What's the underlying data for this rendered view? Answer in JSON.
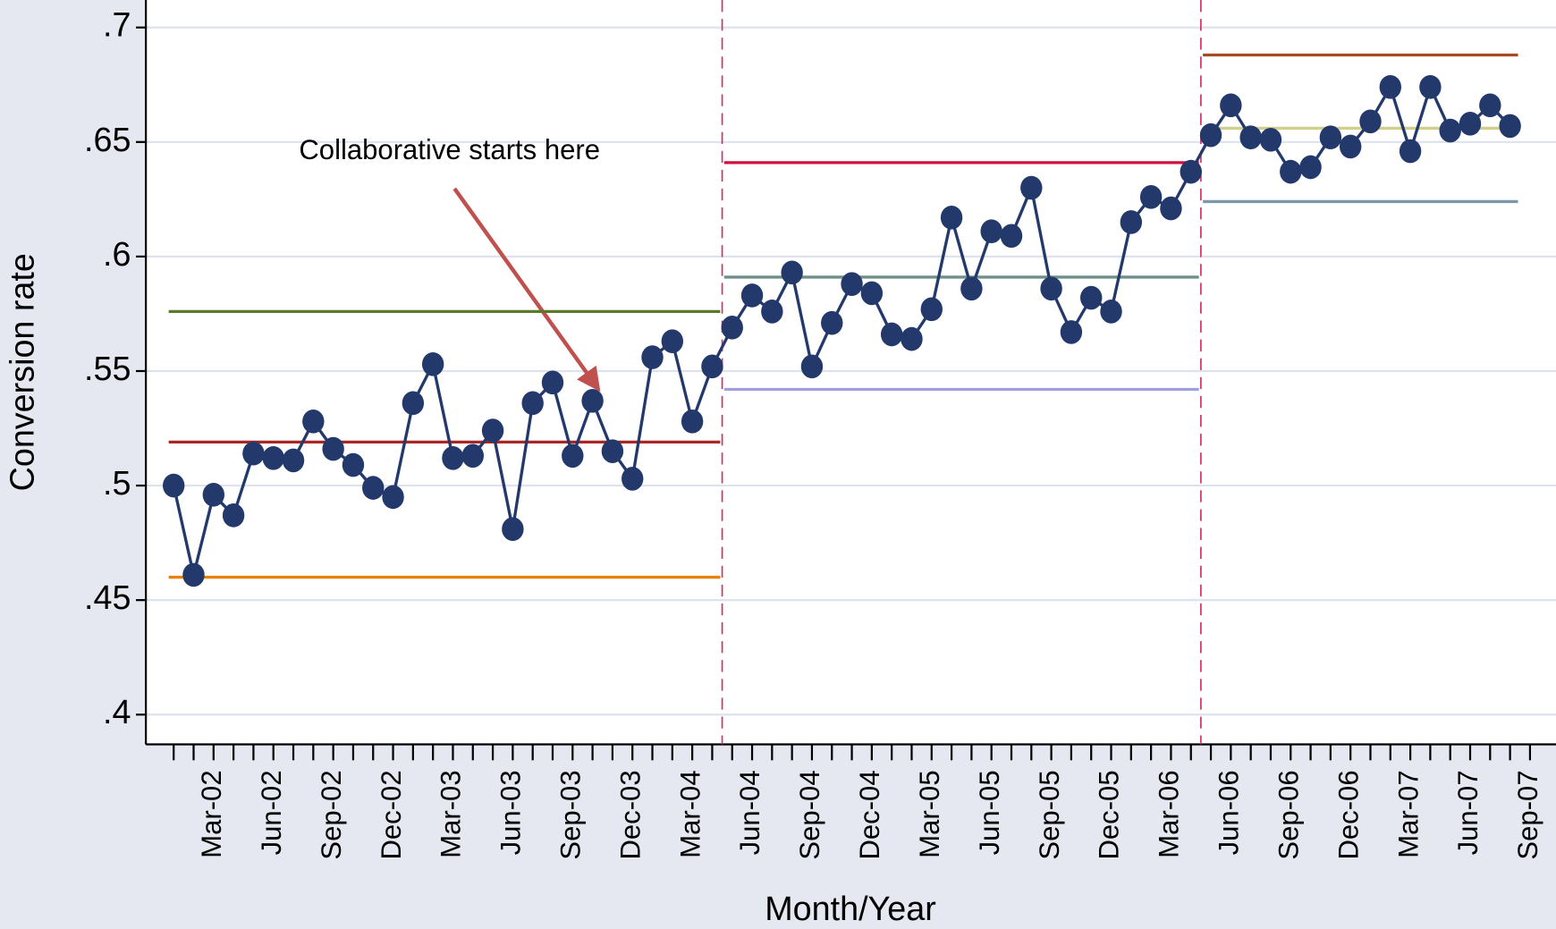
{
  "chart_data": {
    "type": "line",
    "y_label": "Conversion rate",
    "x_label": "Month/Year",
    "annotation": "Collaborative starts here",
    "color": "#24396b",
    "categories": [
      null,
      null,
      "Mar-02",
      null,
      null,
      "Jun-02",
      null,
      null,
      "Sep-02",
      null,
      null,
      "Dec-02",
      null,
      null,
      "Mar-03",
      null,
      null,
      "Jun-03",
      null,
      null,
      "Sep-03",
      null,
      null,
      "Dec-03",
      null,
      null,
      "Mar-04",
      null,
      null,
      "Jun-04",
      null,
      null,
      "Sep-04",
      null,
      null,
      "Dec-04",
      null,
      null,
      "Mar-05",
      null,
      null,
      "Jun-05",
      null,
      null,
      "Sep-05",
      null,
      null,
      "Dec-05",
      null,
      null,
      "Mar-06",
      null,
      null,
      "Jun-06",
      null,
      null,
      "Sep-06",
      null,
      null,
      "Dec-06",
      null,
      null,
      "Mar-07",
      null,
      null,
      "Jun-07",
      null,
      null,
      "Sep-07"
    ],
    "values": [
      0.5,
      0.461,
      0.496,
      0.487,
      0.514,
      0.512,
      0.511,
      0.528,
      0.516,
      0.509,
      0.499,
      0.495,
      0.536,
      0.553,
      0.512,
      0.513,
      0.524,
      0.481,
      0.536,
      0.545,
      0.513,
      0.537,
      0.515,
      0.503,
      0.556,
      0.563,
      0.528,
      0.552,
      0.569,
      0.583,
      0.576,
      0.593,
      0.552,
      0.571,
      0.588,
      0.584,
      0.566,
      0.564,
      0.577,
      0.617,
      0.586,
      0.611,
      0.609,
      0.63,
      0.586,
      0.567,
      0.582,
      0.576,
      0.615,
      0.626,
      0.621,
      0.637,
      0.653,
      0.666,
      0.652,
      0.651,
      0.637,
      0.639,
      0.652,
      0.648,
      0.659,
      0.674,
      0.646,
      0.674,
      0.655,
      0.658,
      0.666,
      0.657,
      null
    ],
    "phases": [
      {
        "from": 0,
        "to": 27,
        "ucl": 0.576,
        "mean": 0.519,
        "lcl": 0.46,
        "colors": [
          "#5a7a2a",
          "#a82828",
          "#e8820c"
        ]
      },
      {
        "from": 28,
        "to": 51,
        "ucl": 0.641,
        "mean": 0.591,
        "lcl": 0.542,
        "colors": [
          "#d01040",
          "#6f9088",
          "#9f9fdc"
        ]
      },
      {
        "from": 52,
        "to": 67,
        "ucl": 0.688,
        "mean": 0.656,
        "lcl": 0.624,
        "colors": [
          "#a84a20",
          "#d2cf8c",
          "#7f97aa"
        ]
      }
    ],
    "ylim": [
      0.387,
      0.712
    ],
    "yticks": [
      {
        "value": 0.4,
        "label": ".4"
      },
      {
        "value": 0.45,
        "label": ".45"
      },
      {
        "value": 0.5,
        "label": ".5"
      },
      {
        "value": 0.55,
        "label": ".55"
      },
      {
        "value": 0.6,
        "label": ".6"
      },
      {
        "value": 0.65,
        "label": ".65"
      },
      {
        "value": 0.7,
        "label": ".7"
      }
    ],
    "grid": true
  }
}
